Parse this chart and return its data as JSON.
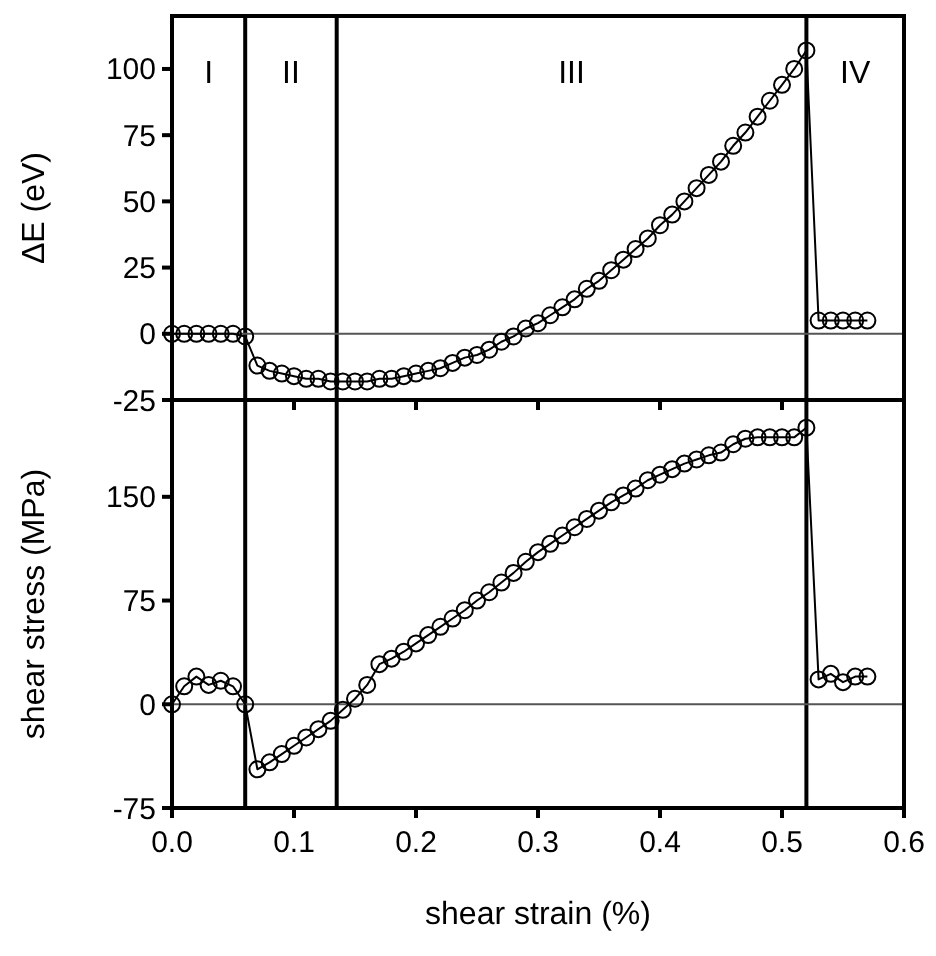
{
  "chart_data": [
    {
      "type": "line",
      "ylabel": "ΔE (eV)",
      "xlim": [
        0,
        0.6
      ],
      "ylim": [
        -25,
        120
      ],
      "xticks": [
        0,
        0.1,
        0.2,
        0.3,
        0.4,
        0.5,
        0.6
      ],
      "yticks": [
        -25,
        0,
        25,
        50,
        75,
        100
      ],
      "tick_labels": "y",
      "marker": "circle",
      "line_style": "solid",
      "grid": false,
      "x": [
        0,
        0.01,
        0.02,
        0.03,
        0.04,
        0.05,
        0.06,
        0.07,
        0.08,
        0.09,
        0.1,
        0.11,
        0.12,
        0.13,
        0.14,
        0.15,
        0.16,
        0.17,
        0.18,
        0.19,
        0.2,
        0.21,
        0.22,
        0.23,
        0.24,
        0.25,
        0.26,
        0.27,
        0.28,
        0.29,
        0.3,
        0.31,
        0.32,
        0.33,
        0.34,
        0.35,
        0.36,
        0.37,
        0.38,
        0.39,
        0.4,
        0.41,
        0.42,
        0.43,
        0.44,
        0.45,
        0.46,
        0.47,
        0.48,
        0.49,
        0.5,
        0.51,
        0.52,
        0.53,
        0.54,
        0.55,
        0.56,
        0.57
      ],
      "series": [
        {
          "color": "#000000",
          "values": [
            0,
            0,
            0,
            0,
            0,
            0,
            -1,
            -12,
            -14,
            -15,
            -16,
            -17,
            -17,
            -18,
            -18,
            -18,
            -18,
            -17,
            -17,
            -16,
            -15,
            -14,
            -13,
            -11,
            -9,
            -8,
            -6,
            -3,
            -1,
            2,
            4,
            7,
            10,
            13,
            17,
            20,
            24,
            28,
            32,
            36,
            41,
            45,
            50,
            55,
            60,
            65,
            71,
            76,
            82,
            88,
            94,
            100,
            107,
            5,
            5,
            5,
            5,
            5
          ]
        }
      ],
      "ref_lines": [
        {
          "axis": "x",
          "value": 0.06,
          "color": "#000000"
        },
        {
          "axis": "x",
          "value": 0.135,
          "color": "#000000"
        },
        {
          "axis": "x",
          "value": 0.52,
          "color": "#000000"
        },
        {
          "axis": "y",
          "value": 0,
          "color": "#555555"
        }
      ],
      "annotations": [
        "I",
        "II",
        "III",
        "IV"
      ]
    },
    {
      "type": "line",
      "xlabel": "shear strain (%)",
      "ylabel": "shear stress (MPa)",
      "xlim": [
        0,
        0.6
      ],
      "ylim": [
        -75,
        220
      ],
      "xticks": [
        {
          "value": 0,
          "label": "0.0"
        },
        0.1,
        0.2,
        0.3,
        0.4,
        0.5,
        0.6
      ],
      "yticks": [
        -75,
        0,
        75,
        150
      ],
      "marker": "circle",
      "line_style": "solid",
      "grid": false,
      "x": [
        0,
        0.01,
        0.02,
        0.03,
        0.04,
        0.05,
        0.06,
        0.07,
        0.08,
        0.09,
        0.1,
        0.11,
        0.12,
        0.13,
        0.14,
        0.15,
        0.16,
        0.17,
        0.18,
        0.19,
        0.2,
        0.21,
        0.22,
        0.23,
        0.24,
        0.25,
        0.26,
        0.27,
        0.28,
        0.29,
        0.3,
        0.31,
        0.32,
        0.33,
        0.34,
        0.35,
        0.36,
        0.37,
        0.38,
        0.39,
        0.4,
        0.41,
        0.42,
        0.43,
        0.44,
        0.45,
        0.46,
        0.47,
        0.48,
        0.49,
        0.5,
        0.51,
        0.52,
        0.53,
        0.54,
        0.55,
        0.56,
        0.57
      ],
      "series": [
        {
          "color": "#000000",
          "values": [
            0,
            13,
            20,
            14,
            17,
            13,
            0,
            -47,
            -42,
            -36,
            -30,
            -24,
            -18,
            -12,
            -4,
            4,
            14,
            29,
            33,
            38,
            44,
            50,
            56,
            62,
            68,
            75,
            81,
            88,
            95,
            103,
            110,
            116,
            122,
            128,
            134,
            140,
            146,
            151,
            156,
            162,
            166,
            170,
            174,
            177,
            180,
            182,
            188,
            192,
            193,
            193,
            193,
            193,
            200,
            18,
            22,
            16,
            20,
            20
          ]
        }
      ],
      "ref_lines": [
        {
          "axis": "x",
          "value": 0.06,
          "color": "#000000"
        },
        {
          "axis": "x",
          "value": 0.135,
          "color": "#000000"
        },
        {
          "axis": "x",
          "value": 0.52,
          "color": "#000000"
        },
        {
          "axis": "y",
          "value": 0,
          "color": "#555555"
        }
      ]
    }
  ]
}
